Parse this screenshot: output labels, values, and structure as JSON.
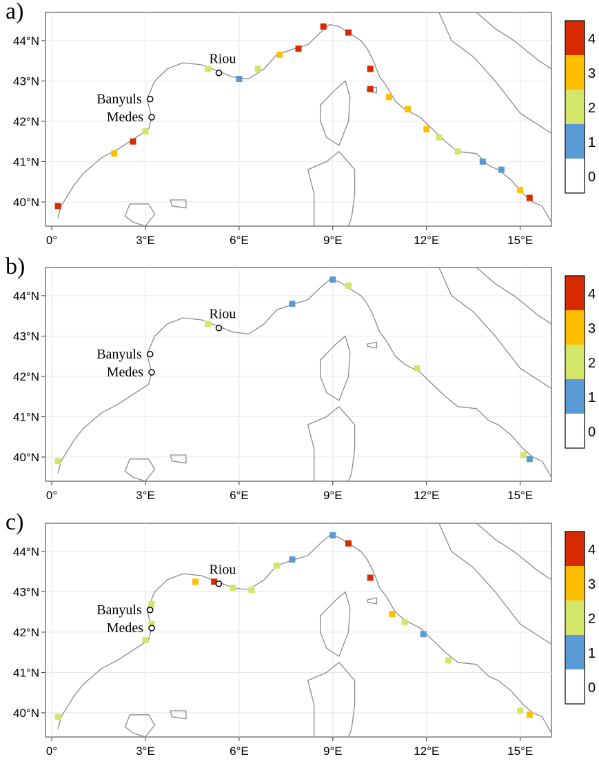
{
  "colors": {
    "land_line": "#8a8a8a",
    "frame": "#7a7a7a",
    "grid": "#e6e6e6",
    "class_colors": [
      "#ffffff",
      "#5b9bd5",
      "#d4e66a",
      "#ffbf00",
      "#d62b00"
    ]
  },
  "axes": {
    "x_ticks": [
      {
        "value": 0,
        "label": "0°"
      },
      {
        "value": 3,
        "label": "3°E"
      },
      {
        "value": 6,
        "label": "6°E"
      },
      {
        "value": 9,
        "label": "9°E"
      },
      {
        "value": 12,
        "label": "12°E"
      },
      {
        "value": 15,
        "label": "15°E"
      }
    ],
    "y_ticks": [
      {
        "value": 40,
        "label": "40°N"
      },
      {
        "value": 41,
        "label": "41°N"
      },
      {
        "value": 42,
        "label": "42°N"
      },
      {
        "value": 43,
        "label": "43°N"
      },
      {
        "value": 44,
        "label": "44°N"
      }
    ],
    "lon_range": [
      -0.2,
      16
    ],
    "lat_range": [
      39.4,
      44.7
    ]
  },
  "colorbar": {
    "labels": [
      "0",
      "1",
      "2",
      "3",
      "4"
    ]
  },
  "sites": [
    {
      "name": "Riou",
      "lon": 5.35,
      "lat": 43.2
    },
    {
      "name": "Banyuls",
      "lon": 3.15,
      "lat": 42.55
    },
    {
      "name": "Medes",
      "lon": 3.2,
      "lat": 42.1
    }
  ],
  "panels": [
    {
      "letter": "a)"
    },
    {
      "letter": "b)"
    },
    {
      "letter": "c)"
    }
  ],
  "chart_data": [
    {
      "type": "map",
      "panel": "a)",
      "legend": [
        "0",
        "1",
        "2",
        "3",
        "4"
      ],
      "segments": [
        {
          "lon": 0.2,
          "lat": 39.9,
          "class": 4
        },
        {
          "lon": 2.0,
          "lat": 41.2,
          "class": 3
        },
        {
          "lon": 2.6,
          "lat": 41.5,
          "class": 4
        },
        {
          "lon": 3.0,
          "lat": 41.75,
          "class": 2
        },
        {
          "lon": 5.0,
          "lat": 43.3,
          "class": 2
        },
        {
          "lon": 6.0,
          "lat": 43.05,
          "class": 1
        },
        {
          "lon": 6.6,
          "lat": 43.3,
          "class": 2
        },
        {
          "lon": 7.3,
          "lat": 43.65,
          "class": 3
        },
        {
          "lon": 7.9,
          "lat": 43.8,
          "class": 4
        },
        {
          "lon": 8.7,
          "lat": 44.35,
          "class": 4
        },
        {
          "lon": 9.5,
          "lat": 44.2,
          "class": 4
        },
        {
          "lon": 10.2,
          "lat": 43.3,
          "class": 4
        },
        {
          "lon": 10.2,
          "lat": 42.8,
          "class": 4
        },
        {
          "lon": 10.8,
          "lat": 42.6,
          "class": 3
        },
        {
          "lon": 11.4,
          "lat": 42.3,
          "class": 3
        },
        {
          "lon": 12.0,
          "lat": 41.8,
          "class": 3
        },
        {
          "lon": 12.4,
          "lat": 41.6,
          "class": 2
        },
        {
          "lon": 13.0,
          "lat": 41.25,
          "class": 2
        },
        {
          "lon": 13.8,
          "lat": 41.0,
          "class": 1
        },
        {
          "lon": 14.4,
          "lat": 40.8,
          "class": 1
        },
        {
          "lon": 15.0,
          "lat": 40.3,
          "class": 3
        },
        {
          "lon": 15.3,
          "lat": 40.1,
          "class": 4
        }
      ]
    },
    {
      "type": "map",
      "panel": "b)",
      "legend": [
        "0",
        "1",
        "2",
        "3",
        "4"
      ],
      "segments": [
        {
          "lon": 0.2,
          "lat": 39.9,
          "class": 2
        },
        {
          "lon": 5.0,
          "lat": 43.3,
          "class": 2
        },
        {
          "lon": 7.7,
          "lat": 43.8,
          "class": 1
        },
        {
          "lon": 9.0,
          "lat": 44.4,
          "class": 1
        },
        {
          "lon": 9.5,
          "lat": 44.25,
          "class": 2
        },
        {
          "lon": 11.7,
          "lat": 42.2,
          "class": 2
        },
        {
          "lon": 15.1,
          "lat": 40.05,
          "class": 2
        },
        {
          "lon": 15.3,
          "lat": 39.95,
          "class": 1
        }
      ]
    },
    {
      "type": "map",
      "panel": "c)",
      "legend": [
        "0",
        "1",
        "2",
        "3",
        "4"
      ],
      "segments": [
        {
          "lon": 0.2,
          "lat": 39.9,
          "class": 2
        },
        {
          "lon": 3.0,
          "lat": 41.8,
          "class": 2
        },
        {
          "lon": 3.2,
          "lat": 42.2,
          "class": 2
        },
        {
          "lon": 3.2,
          "lat": 42.7,
          "class": 2
        },
        {
          "lon": 4.6,
          "lat": 43.25,
          "class": 3
        },
        {
          "lon": 5.2,
          "lat": 43.25,
          "class": 4
        },
        {
          "lon": 5.8,
          "lat": 43.1,
          "class": 2
        },
        {
          "lon": 6.4,
          "lat": 43.05,
          "class": 2
        },
        {
          "lon": 7.2,
          "lat": 43.65,
          "class": 2
        },
        {
          "lon": 7.7,
          "lat": 43.8,
          "class": 1
        },
        {
          "lon": 9.0,
          "lat": 44.4,
          "class": 1
        },
        {
          "lon": 9.5,
          "lat": 44.2,
          "class": 4
        },
        {
          "lon": 10.2,
          "lat": 43.35,
          "class": 4
        },
        {
          "lon": 10.9,
          "lat": 42.45,
          "class": 3
        },
        {
          "lon": 11.3,
          "lat": 42.25,
          "class": 2
        },
        {
          "lon": 11.9,
          "lat": 41.95,
          "class": 1
        },
        {
          "lon": 12.7,
          "lat": 41.3,
          "class": 2
        },
        {
          "lon": 15.0,
          "lat": 40.05,
          "class": 2
        },
        {
          "lon": 15.3,
          "lat": 39.95,
          "class": 3
        }
      ]
    }
  ]
}
